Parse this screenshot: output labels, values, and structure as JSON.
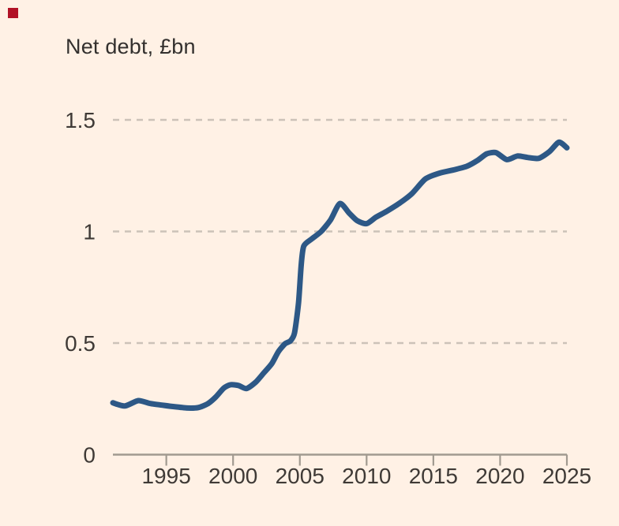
{
  "brand_mark": {
    "color": "#b11226"
  },
  "title": "Net debt, £bn",
  "chart_data": {
    "type": "line",
    "title": "Net debt, £bn",
    "xlabel": "",
    "ylabel": "",
    "xlim": [
      1991,
      2025
    ],
    "ylim": [
      0,
      1.5
    ],
    "x_ticks": [
      1995,
      2000,
      2005,
      2010,
      2015,
      2020,
      2025
    ],
    "y_ticks": [
      0,
      0.5,
      1,
      1.5
    ],
    "y_tick_labels": [
      "0",
      "0.5",
      "1",
      "1.5"
    ],
    "grid": "horizontal-dashed",
    "legend": "none",
    "colors": {
      "background": "#fff1e5",
      "line": "#2d5886",
      "grid": "#ccc2b8",
      "axis": "#a19a90",
      "text": "#3f3a36"
    },
    "series": [
      {
        "name": "Net debt",
        "color": "#2d5886",
        "points": [
          [
            1991.0,
            0.232
          ],
          [
            1991.9,
            0.218
          ],
          [
            1992.9,
            0.242
          ],
          [
            1993.8,
            0.229
          ],
          [
            1994.8,
            0.221
          ],
          [
            1995.7,
            0.214
          ],
          [
            1996.6,
            0.209
          ],
          [
            1997.4,
            0.211
          ],
          [
            1998.1,
            0.228
          ],
          [
            1998.7,
            0.258
          ],
          [
            1999.3,
            0.298
          ],
          [
            1999.8,
            0.313
          ],
          [
            2000.4,
            0.31
          ],
          [
            2001.0,
            0.296
          ],
          [
            2001.7,
            0.325
          ],
          [
            2002.3,
            0.366
          ],
          [
            2002.9,
            0.408
          ],
          [
            2003.4,
            0.462
          ],
          [
            2003.9,
            0.497
          ],
          [
            2004.3,
            0.51
          ],
          [
            2004.6,
            0.545
          ],
          [
            2004.9,
            0.68
          ],
          [
            2005.1,
            0.85
          ],
          [
            2005.3,
            0.935
          ],
          [
            2005.9,
            0.967
          ],
          [
            2006.6,
            1.0
          ],
          [
            2007.3,
            1.052
          ],
          [
            2008.0,
            1.125
          ],
          [
            2008.7,
            1.082
          ],
          [
            2009.3,
            1.048
          ],
          [
            2010.0,
            1.035
          ],
          [
            2010.7,
            1.064
          ],
          [
            2011.5,
            1.09
          ],
          [
            2012.4,
            1.124
          ],
          [
            2013.4,
            1.17
          ],
          [
            2014.4,
            1.235
          ],
          [
            2015.5,
            1.262
          ],
          [
            2016.6,
            1.277
          ],
          [
            2017.5,
            1.292
          ],
          [
            2018.3,
            1.318
          ],
          [
            2019.0,
            1.348
          ],
          [
            2019.7,
            1.353
          ],
          [
            2020.5,
            1.322
          ],
          [
            2021.3,
            1.338
          ],
          [
            2022.1,
            1.331
          ],
          [
            2022.9,
            1.328
          ],
          [
            2023.7,
            1.358
          ],
          [
            2024.4,
            1.4
          ],
          [
            2025.0,
            1.375
          ]
        ]
      }
    ]
  }
}
